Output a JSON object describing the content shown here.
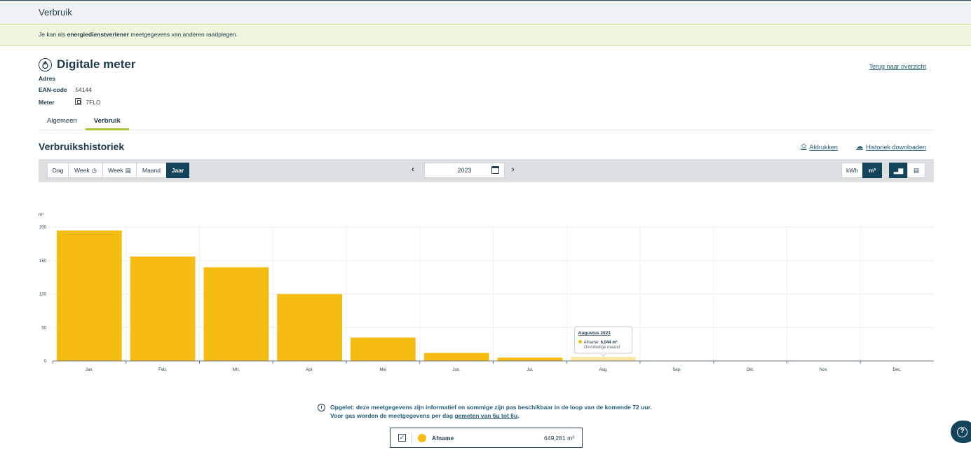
{
  "header": {
    "title": "Verbruik"
  },
  "notice": {
    "prefix": "Je kan als ",
    "bold": "energiedienstverlener",
    "suffix": " meetgegevens van anderen raadplegen."
  },
  "meter": {
    "title": "Digitale meter",
    "back_link": "Terug naar overzicht",
    "address_label": "Adres",
    "ean_label": "EAN-code",
    "ean_value": "54144",
    "meter_label": "Meter",
    "meter_value": "7FLO"
  },
  "tabs": [
    {
      "label": "Algemeen",
      "active": false
    },
    {
      "label": "Verbruik",
      "active": true
    }
  ],
  "history": {
    "title": "Verbruikshistoriek",
    "print_label": "Afdrukken",
    "download_label": "Historiek downloaden"
  },
  "toolbar": {
    "periods": [
      {
        "label": "Dag",
        "icon": ""
      },
      {
        "label": "Week",
        "icon": "clock-icon"
      },
      {
        "label": "Week",
        "icon": "calendar-icon"
      },
      {
        "label": "Maand",
        "icon": ""
      },
      {
        "label": "Jaar",
        "icon": "",
        "active": true
      }
    ],
    "year": "2023",
    "units": [
      {
        "label": "kWh"
      },
      {
        "label": "m³",
        "active": true
      }
    ],
    "views": [
      {
        "icon": "bar-chart-icon",
        "active": true
      },
      {
        "icon": "table-icon"
      }
    ]
  },
  "chart_data": {
    "type": "bar",
    "ylabel": "m³",
    "ylim": [
      0,
      200
    ],
    "yticks": [
      0,
      50,
      100,
      150,
      200
    ],
    "categories": [
      "Jan.",
      "Feb.",
      "Mrt.",
      "Apr.",
      "Mei",
      "Jun.",
      "Jul.",
      "Aug.",
      "Sep.",
      "Okt.",
      "Nov.",
      "Dec."
    ],
    "series": [
      {
        "name": "Afname",
        "color": "#f5bd12",
        "values": [
          195,
          156,
          140,
          100,
          35,
          12,
          5,
          6.044,
          null,
          null,
          null,
          null
        ]
      }
    ],
    "grid": true,
    "tooltip": {
      "title": "Augustus 2023",
      "label": "Afname:",
      "value": "6,044 m³",
      "note": "Onvolledige maand",
      "category_index": 7
    }
  },
  "info": {
    "line1": "Opgelet: deze meetgegevens zijn informatief en sommige zijn pas beschikbaar in de loop van de komende 72 uur.",
    "line2_prefix": "Voor gas worden de meetgegevens per dag ",
    "line2_link": "gemeten van 6u tot 6u",
    "line2_suffix": "."
  },
  "legend": {
    "name": "Afname",
    "value": "649,281 m³",
    "color": "#f5bd12",
    "checked": true
  }
}
